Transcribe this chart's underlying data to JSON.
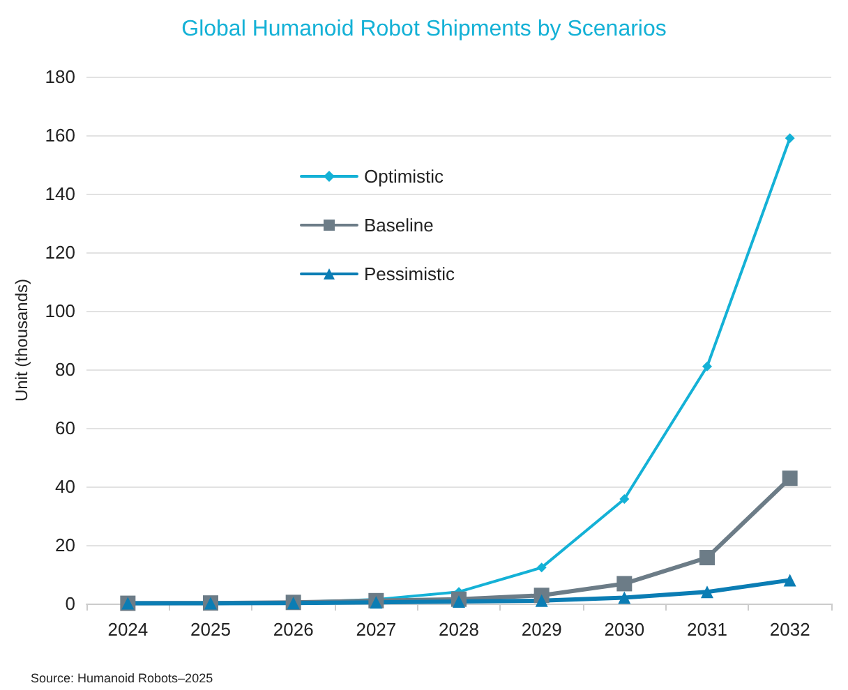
{
  "chart_data": {
    "type": "line",
    "title": "Global Humanoid Robot Shipments by Scenarios",
    "ylabel": "Unit (thousands)",
    "categories": [
      "2024",
      "2025",
      "2026",
      "2027",
      "2028",
      "2029",
      "2030",
      "2031",
      "2032"
    ],
    "series": [
      {
        "name": "Optimistic",
        "color": "#14b1d6",
        "marker": "diamond",
        "values": [
          0.1,
          0.2,
          0.4,
          1.4,
          4,
          12.3,
          35.7,
          81,
          159
        ]
      },
      {
        "name": "Baseline",
        "color": "#6c7c87",
        "marker": "square",
        "values": [
          0.1,
          0.2,
          0.4,
          1,
          1.5,
          2.8,
          6.8,
          15.7,
          42.8
        ]
      },
      {
        "name": "Pessimistic",
        "color": "#0b7db4",
        "marker": "triangle",
        "values": [
          0.1,
          0.1,
          0.2,
          0.4,
          0.7,
          1,
          2,
          4,
          8
        ]
      }
    ],
    "ylim": [
      0,
      180
    ],
    "yticks": [
      0,
      20,
      40,
      60,
      80,
      100,
      120,
      140,
      160,
      180
    ],
    "grid": "y",
    "legend": "top left",
    "annotations": [
      "Source: Humanoid Robots–2025"
    ]
  }
}
